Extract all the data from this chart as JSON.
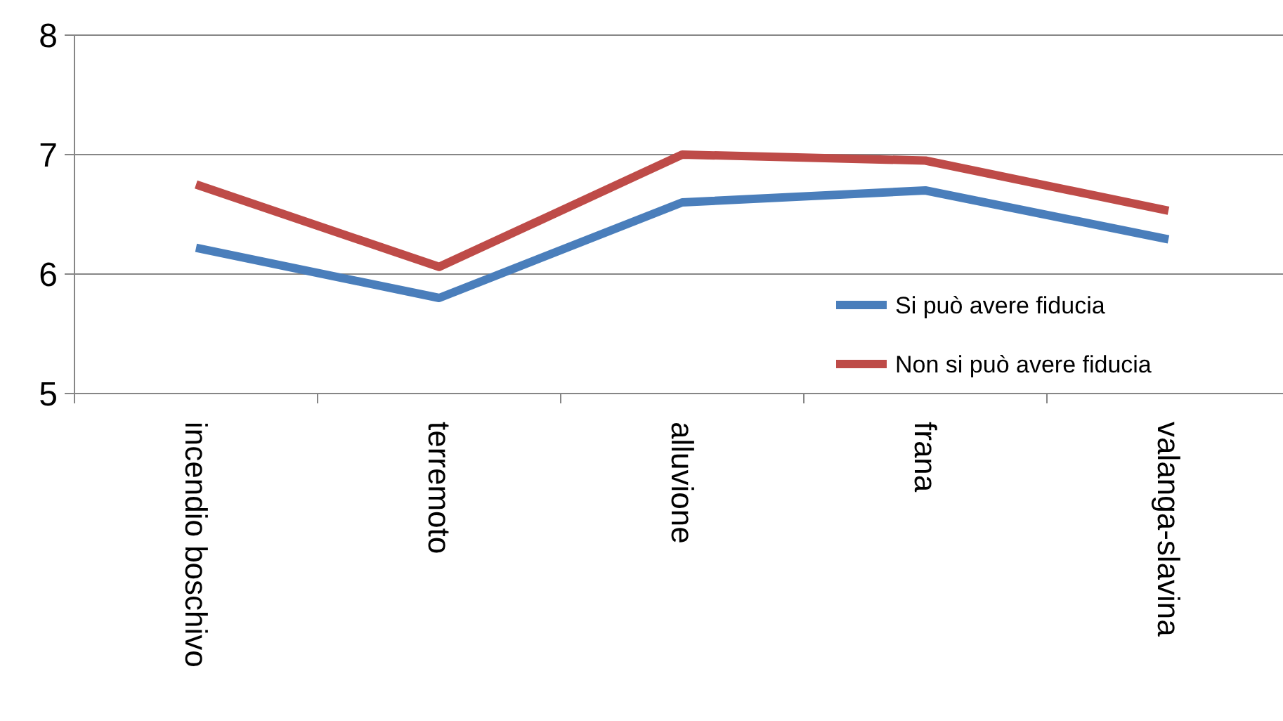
{
  "chart_data": {
    "type": "line",
    "categories": [
      "incendio boschivo",
      "terremoto",
      "alluvione",
      "frana",
      "valanga-slavina"
    ],
    "series": [
      {
        "name": "Si può avere fiducia",
        "color": "#4a7ebb",
        "values": [
          6.22,
          5.8,
          6.6,
          6.7,
          6.29
        ]
      },
      {
        "name": "Non si può avere fiducia",
        "color": "#be4b48",
        "values": [
          6.75,
          6.06,
          7.0,
          6.95,
          6.53
        ]
      }
    ],
    "ylim": [
      5,
      8
    ],
    "yticks": [
      5,
      6,
      7,
      8
    ],
    "grid": "y",
    "legend": "right",
    "marker": "none"
  }
}
